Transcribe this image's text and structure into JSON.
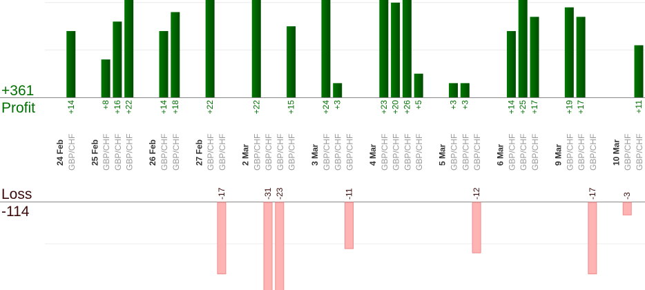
{
  "chart_data": {
    "type": "bar",
    "title": "",
    "profit_label": "Profit",
    "loss_label": "Loss",
    "profit_total": "+361",
    "loss_total": "-114",
    "profit_ylim": [
      0,
      20.5
    ],
    "loss_ylim": [
      -19,
      0
    ],
    "colors": {
      "profit": "#006400",
      "profit_text": "#007000",
      "loss": "#ffb3b3",
      "loss_border": "#f08a8a",
      "loss_text": "#3a0a0a",
      "pair_text": "#999999",
      "date_text": "#333333"
    },
    "days": [
      {
        "date": "24 Feb",
        "trades": [
          {
            "pair": "GBP/CHF",
            "value": 14
          }
        ]
      },
      {
        "date": "25 Feb",
        "trades": [
          {
            "pair": "GBP/CHF",
            "value": 8
          },
          {
            "pair": "GBP/CHF",
            "value": 16
          },
          {
            "pair": "GBP/CHF",
            "value": 22
          }
        ]
      },
      {
        "date": "26 Feb",
        "trades": [
          {
            "pair": "GBP/CHF",
            "value": 14
          },
          {
            "pair": "GBP/CHF",
            "value": 18
          }
        ]
      },
      {
        "date": "27 Feb",
        "trades": [
          {
            "pair": "GBP/CHF",
            "value": 22
          },
          {
            "pair": "GBP/CHF",
            "value": -17
          }
        ]
      },
      {
        "date": "2 Mar",
        "trades": [
          {
            "pair": "GBP/CHF",
            "value": 22
          },
          {
            "pair": "GBP/CHF",
            "value": -31
          },
          {
            "pair": "GBP/CHF",
            "value": -23
          },
          {
            "pair": "GBP/CHF",
            "value": 15
          }
        ]
      },
      {
        "date": "3 Mar",
        "trades": [
          {
            "pair": "GBP/CHF",
            "value": 24
          },
          {
            "pair": "GBP/CHF",
            "value": 3
          },
          {
            "pair": "GBP/CHF",
            "value": -11
          }
        ]
      },
      {
        "date": "4 Mar",
        "trades": [
          {
            "pair": "GBP/CHF",
            "value": 23
          },
          {
            "pair": "GBP/CHF",
            "value": 20
          },
          {
            "pair": "GBP/CHF",
            "value": 26
          },
          {
            "pair": "GBP/CHF",
            "value": 5
          }
        ]
      },
      {
        "date": "5 Mar",
        "trades": [
          {
            "pair": "GBP/CHF",
            "value": 3
          },
          {
            "pair": "GBP/CHF",
            "value": 3
          },
          {
            "pair": "GBP/CHF",
            "value": -12
          }
        ]
      },
      {
        "date": "6 Mar",
        "trades": [
          {
            "pair": "GBP/CHF",
            "value": 14
          },
          {
            "pair": "GBP/CHF",
            "value": 25
          },
          {
            "pair": "GBP/CHF",
            "value": 17
          }
        ]
      },
      {
        "date": "9 Mar",
        "trades": [
          {
            "pair": "GBP/CHF",
            "value": 19
          },
          {
            "pair": "GBP/CHF",
            "value": 17
          },
          {
            "pair": "GBP/CHF",
            "value": -17
          }
        ]
      },
      {
        "date": "10 Mar",
        "trades": [
          {
            "pair": "GBP/CHF",
            "value": -3
          },
          {
            "pair": "GBP/CHF",
            "value": 11
          }
        ]
      }
    ]
  }
}
